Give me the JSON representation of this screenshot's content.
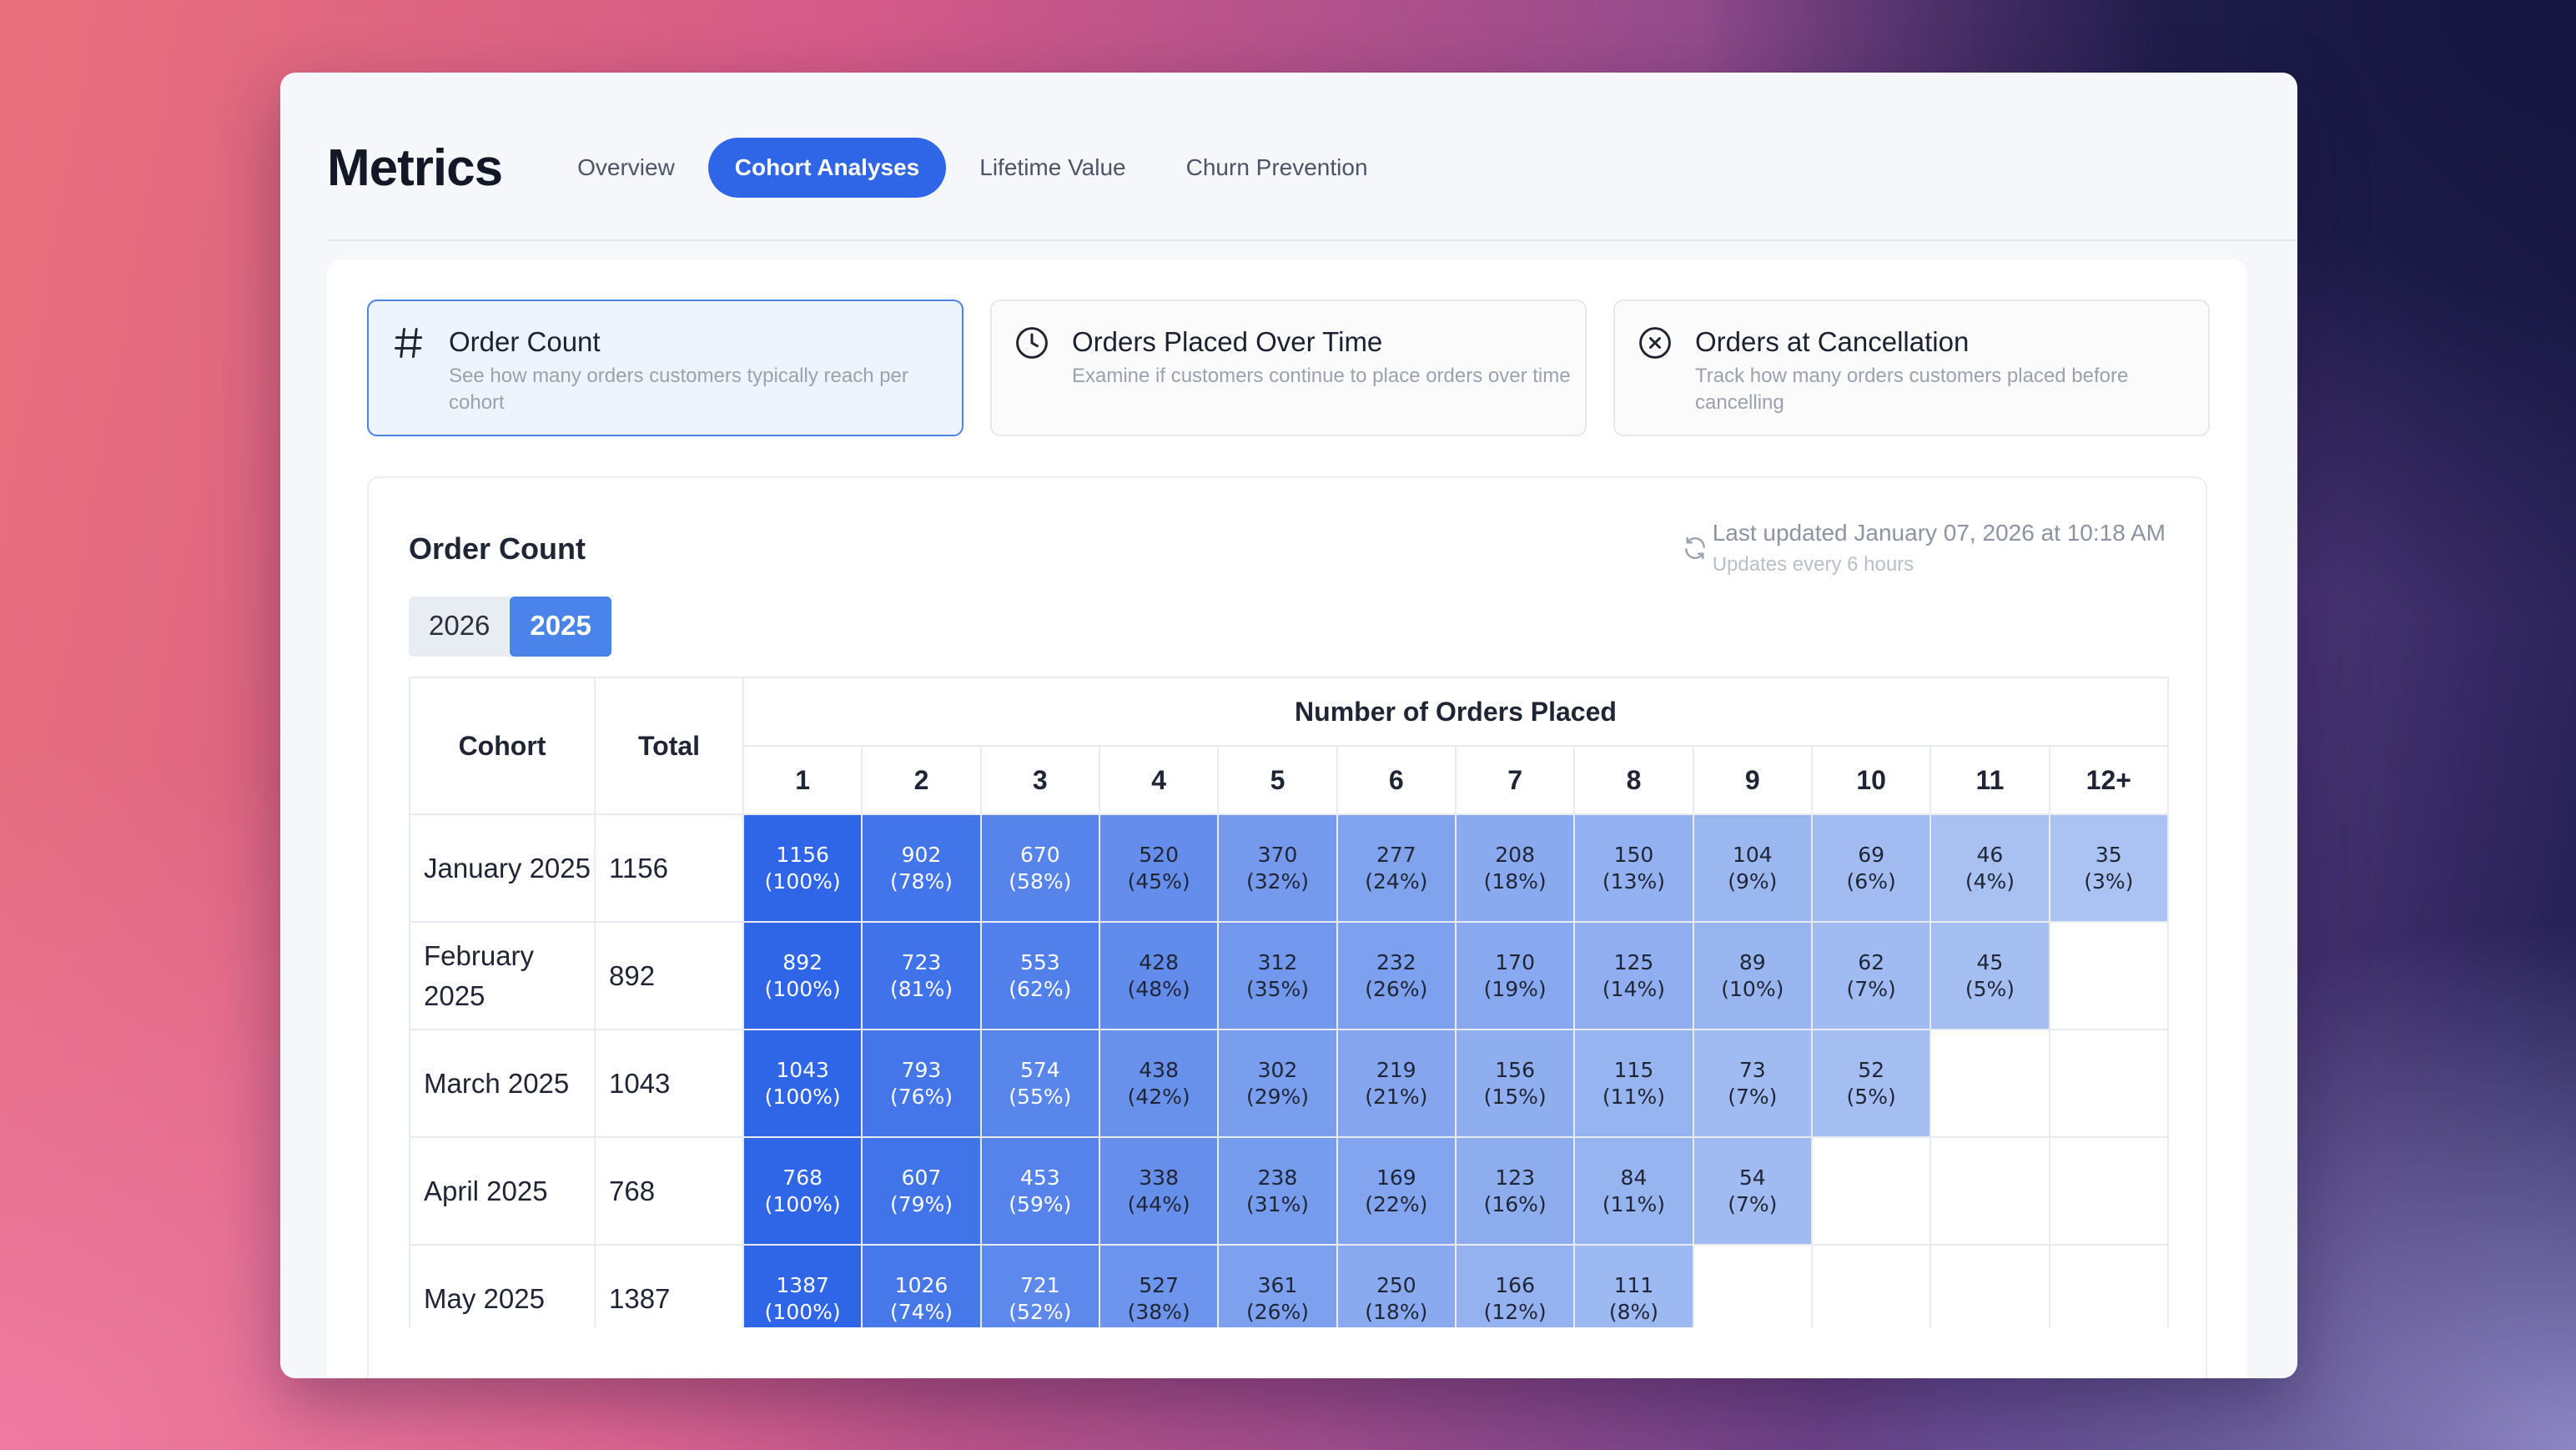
{
  "app": {
    "title": "Metrics",
    "tabs": [
      {
        "label": "Overview",
        "active": false
      },
      {
        "label": "Cohort Analyses",
        "active": true
      },
      {
        "label": "Lifetime Value",
        "active": false
      },
      {
        "label": "Churn Prevention",
        "active": false
      }
    ]
  },
  "cards": [
    {
      "icon": "hash-icon",
      "title": "Order Count",
      "description": "See how many orders customers typically reach per cohort",
      "active": true
    },
    {
      "icon": "clock-icon",
      "title": "Orders Placed Over Time",
      "description": "Examine if customers continue to place orders over time",
      "active": false
    },
    {
      "icon": "cancel-circle-icon",
      "title": "Orders at Cancellation",
      "description": "Track how many orders customers placed before cancelling",
      "active": false
    }
  ],
  "report": {
    "title": "Order Count",
    "last_updated": "Last updated January 07, 2026 at 10:18 AM",
    "update_frequency": "Updates every 6 hours",
    "years": [
      {
        "label": "2026",
        "active": false
      },
      {
        "label": "2025",
        "active": true
      }
    ]
  },
  "table": {
    "col_cohort": "Cohort",
    "col_total": "Total",
    "group_header": "Number of Orders Placed",
    "order_columns": [
      "1",
      "2",
      "3",
      "4",
      "5",
      "6",
      "7",
      "8",
      "9",
      "10",
      "11",
      "12+"
    ],
    "rows": [
      {
        "cohort": "January 2025",
        "total": "1156",
        "cells": [
          [
            "1156",
            "(100%)"
          ],
          [
            "902",
            "(78%)"
          ],
          [
            "670",
            "(58%)"
          ],
          [
            "520",
            "(45%)"
          ],
          [
            "370",
            "(32%)"
          ],
          [
            "277",
            "(24%)"
          ],
          [
            "208",
            "(18%)"
          ],
          [
            "150",
            "(13%)"
          ],
          [
            "104",
            "(9%)"
          ],
          [
            "69",
            "(6%)"
          ],
          [
            "46",
            "(4%)"
          ],
          [
            "35",
            "(3%)"
          ]
        ],
        "pct": [
          100,
          78,
          58,
          45,
          32,
          24,
          18,
          13,
          9,
          6,
          4,
          3
        ]
      },
      {
        "cohort": "February 2025",
        "total": "892",
        "cells": [
          [
            "892",
            "(100%)"
          ],
          [
            "723",
            "(81%)"
          ],
          [
            "553",
            "(62%)"
          ],
          [
            "428",
            "(48%)"
          ],
          [
            "312",
            "(35%)"
          ],
          [
            "232",
            "(26%)"
          ],
          [
            "170",
            "(19%)"
          ],
          [
            "125",
            "(14%)"
          ],
          [
            "89",
            "(10%)"
          ],
          [
            "62",
            "(7%)"
          ],
          [
            "45",
            "(5%)"
          ]
        ],
        "pct": [
          100,
          81,
          62,
          48,
          35,
          26,
          19,
          14,
          10,
          7,
          5
        ]
      },
      {
        "cohort": "March 2025",
        "total": "1043",
        "cells": [
          [
            "1043",
            "(100%)"
          ],
          [
            "793",
            "(76%)"
          ],
          [
            "574",
            "(55%)"
          ],
          [
            "438",
            "(42%)"
          ],
          [
            "302",
            "(29%)"
          ],
          [
            "219",
            "(21%)"
          ],
          [
            "156",
            "(15%)"
          ],
          [
            "115",
            "(11%)"
          ],
          [
            "73",
            "(7%)"
          ],
          [
            "52",
            "(5%)"
          ]
        ],
        "pct": [
          100,
          76,
          55,
          42,
          29,
          21,
          15,
          11,
          7,
          5
        ]
      },
      {
        "cohort": "April 2025",
        "total": "768",
        "cells": [
          [
            "768",
            "(100%)"
          ],
          [
            "607",
            "(79%)"
          ],
          [
            "453",
            "(59%)"
          ],
          [
            "338",
            "(44%)"
          ],
          [
            "238",
            "(31%)"
          ],
          [
            "169",
            "(22%)"
          ],
          [
            "123",
            "(16%)"
          ],
          [
            "84",
            "(11%)"
          ],
          [
            "54",
            "(7%)"
          ]
        ],
        "pct": [
          100,
          79,
          59,
          44,
          31,
          22,
          16,
          11,
          7
        ]
      },
      {
        "cohort": "May 2025",
        "total": "1387",
        "cells": [
          [
            "1387",
            "(100%)"
          ],
          [
            "1026",
            "(74%)"
          ],
          [
            "721",
            "(52%)"
          ],
          [
            "527",
            "(38%)"
          ],
          [
            "361",
            "(26%)"
          ],
          [
            "250",
            "(18%)"
          ],
          [
            "166",
            "(12%)"
          ],
          [
            "111",
            "(8%)"
          ]
        ],
        "pct": [
          100,
          74,
          52,
          38,
          26,
          18,
          12,
          8
        ]
      }
    ]
  },
  "colors": {
    "accent": "#2f66e8",
    "heat_high": "#2f66e8",
    "heat_low": "#bcd0f3"
  }
}
